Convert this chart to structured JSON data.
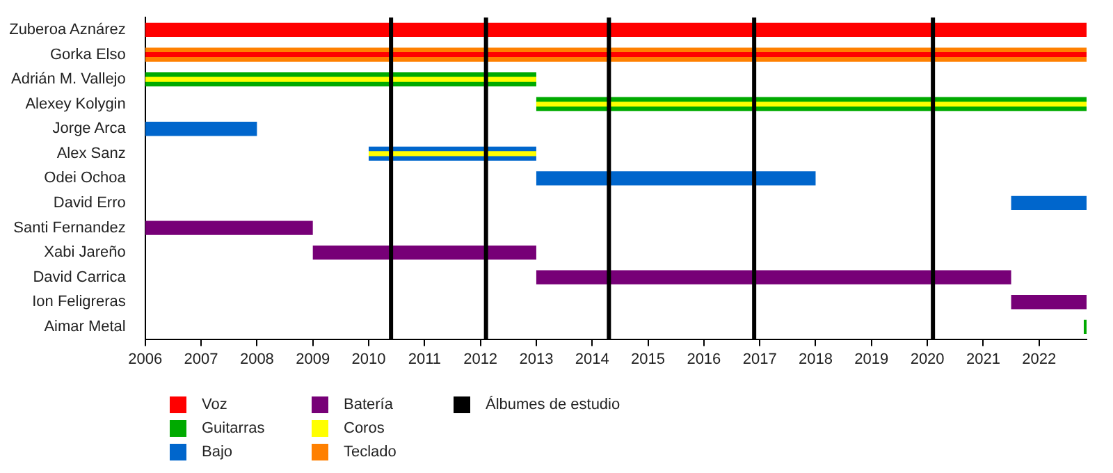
{
  "chart_data": {
    "type": "bar",
    "orientation": "horizontal",
    "categories": [
      "Zuberoa Aznárez",
      "Gorka Elso",
      "Adrián M. Vallejo",
      "Alexey Kolygin",
      "Jorge Arca",
      "Alex Sanz",
      "Odei Ochoa",
      "David Erro",
      "Santi Fernandez",
      "Xabi Jareño",
      "David Carrica",
      "Ion Feligreras",
      "Aimar Metal"
    ],
    "series": [
      {
        "name": "Voz",
        "color": "#ff0000",
        "base": [
          2006,
          null,
          null,
          null,
          null,
          null,
          null,
          null,
          null,
          null,
          null,
          null,
          null
        ],
        "values": [
          16.85,
          null,
          null,
          null,
          null,
          null,
          null,
          null,
          null,
          null,
          null,
          null,
          null
        ]
      },
      {
        "name": "Guitarras",
        "color": "#00aa00",
        "base": [
          null,
          null,
          2006,
          2013,
          null,
          null,
          null,
          null,
          null,
          null,
          null,
          null,
          2022.8
        ],
        "values": [
          null,
          null,
          7,
          9.85,
          null,
          null,
          null,
          null,
          null,
          null,
          null,
          null,
          0.05
        ]
      },
      {
        "name": "Bajo",
        "color": "#0066cc",
        "base": [
          null,
          null,
          null,
          null,
          2006,
          2010,
          2013,
          2021.5,
          null,
          null,
          null,
          null,
          null
        ],
        "values": [
          null,
          null,
          null,
          null,
          2,
          3,
          5,
          1.35,
          null,
          null,
          null,
          null,
          null
        ]
      },
      {
        "name": "Batería",
        "color": "#770077",
        "base": [
          null,
          null,
          null,
          null,
          null,
          null,
          null,
          null,
          2006,
          2009,
          2013,
          2021.5,
          null
        ],
        "values": [
          null,
          null,
          null,
          null,
          null,
          null,
          null,
          null,
          3,
          4,
          8.5,
          1.35,
          null
        ]
      },
      {
        "name": "Coros",
        "color": "#ffff00",
        "base": [
          null,
          null,
          2006,
          2013,
          null,
          2010,
          null,
          null,
          null,
          null,
          null,
          null,
          null
        ],
        "values": [
          null,
          null,
          7,
          9.85,
          null,
          3,
          null,
          null,
          null,
          null,
          null,
          null,
          null
        ]
      },
      {
        "name": "Teclado",
        "color": "#ff8000",
        "base": [
          null,
          2006,
          null,
          null,
          null,
          null,
          null,
          null,
          null,
          null,
          null,
          null,
          null
        ],
        "values": [
          null,
          16.85,
          null,
          null,
          null,
          null,
          null,
          null,
          null,
          null,
          null,
          null,
          null
        ]
      },
      {
        "color": "#ff0000",
        "base": [
          null,
          2006,
          null,
          null,
          null,
          null,
          null,
          null,
          null,
          null,
          null,
          null,
          null
        ],
        "values": [
          null,
          16.85,
          null,
          null,
          null,
          null,
          null,
          null,
          null,
          null,
          null,
          null,
          null
        ]
      }
    ],
    "xlim": [
      2006,
      2022.85
    ],
    "xticks": [
      2006,
      2007,
      2008,
      2009,
      2010,
      2011,
      2012,
      2013,
      2014,
      2015,
      2016,
      2017,
      2018,
      2019,
      2020,
      2021,
      2022
    ],
    "ref_lines": [
      {
        "axis": "x",
        "value": 2010.4,
        "label": "Álbumes de estudio",
        "color": "#000000"
      },
      {
        "axis": "x",
        "value": 2012.1,
        "color": "#000000"
      },
      {
        "axis": "x",
        "value": 2014.3,
        "color": "#000000"
      },
      {
        "axis": "x",
        "value": 2016.9,
        "color": "#000000"
      },
      {
        "axis": "x",
        "value": 2020.1,
        "color": "#000000"
      }
    ],
    "legend": "bottom left"
  }
}
